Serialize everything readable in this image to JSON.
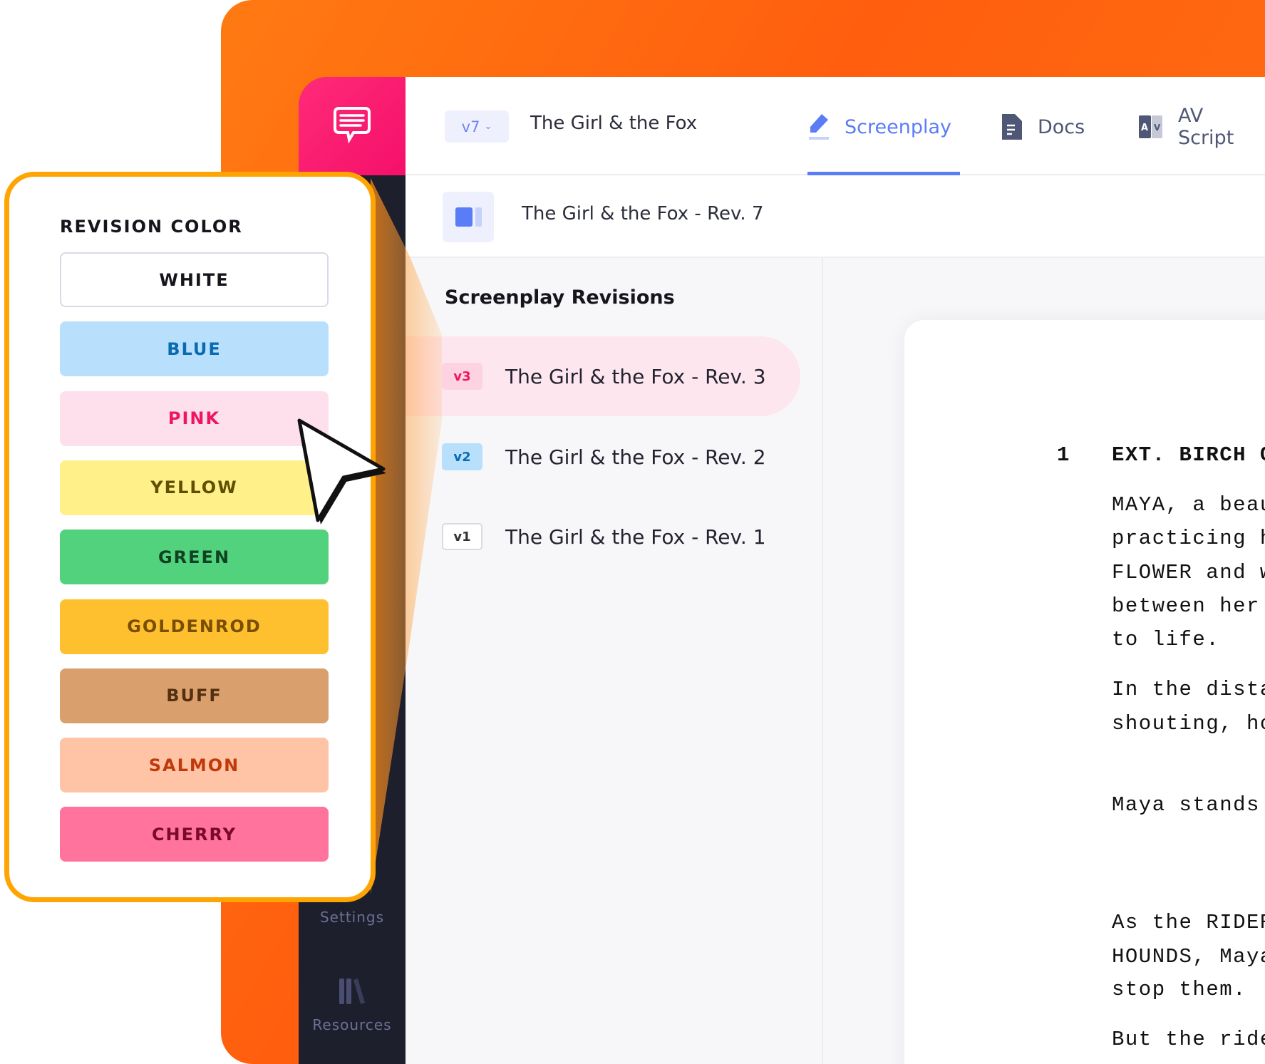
{
  "app": {
    "rail": {
      "items": [
        {
          "label": "Settings",
          "icon": "settings-icon"
        },
        {
          "label": "Resources",
          "icon": "books-icon"
        }
      ],
      "logo_icon": "chat-bubble-icon",
      "brand_color": "#f5106a"
    },
    "header": {
      "version": "v7",
      "project_title": "The Girl & the Fox",
      "tabs": [
        {
          "label": "Screenplay",
          "icon": "pencil-icon",
          "active": true
        },
        {
          "label": "Docs",
          "icon": "document-icon",
          "active": false
        },
        {
          "label": "AV Script",
          "icon": "av-icon",
          "active": false
        }
      ],
      "accent": "#5b7cf7"
    },
    "subheader": {
      "title": "The Girl & the Fox - Rev. 7",
      "icon": "panel-icon"
    },
    "revisions": {
      "heading": "Screenplay Revisions",
      "items": [
        {
          "badge": "v3",
          "title": "The Girl & the Fox - Rev. 3",
          "selected": true
        },
        {
          "badge": "v2",
          "title": "The Girl & the Fox - Rev. 2",
          "selected": false
        },
        {
          "badge": "v1",
          "title": "The Girl & the Fox - Rev. 1",
          "selected": false
        }
      ]
    },
    "script": {
      "scene_number": "1",
      "lines": [
        "EXT. BIRCH G",
        "MAYA, a beau",
        "practicing h",
        "FLOWER and w",
        "between her ",
        "to life.",
        "In the dista",
        "shouting, ho",
        "Maya stands ",
        "As the RIDER",
        "HOUNDS, Maya",
        "stop them.",
        "But the ride"
      ]
    }
  },
  "revision_color": {
    "title": "REVISION COLOR",
    "options": [
      {
        "label": "WHITE",
        "bg": "#ffffff",
        "fg": "#15151c"
      },
      {
        "label": "BLUE",
        "bg": "#b8e0fd",
        "fg": "#0b6bb0"
      },
      {
        "label": "PINK",
        "bg": "#fde0ec",
        "fg": "#f0155e"
      },
      {
        "label": "YELLOW",
        "bg": "#fff08a",
        "fg": "#5f5000"
      },
      {
        "label": "GREEN",
        "bg": "#52d27c",
        "fg": "#0f4222"
      },
      {
        "label": "GOLDENROD",
        "bg": "#fec02f",
        "fg": "#7a4e00"
      },
      {
        "label": "BUFF",
        "bg": "#d9a06e",
        "fg": "#553010"
      },
      {
        "label": "SALMON",
        "bg": "#ffc4a6",
        "fg": "#c0390b"
      },
      {
        "label": "CHERRY",
        "bg": "#ff739c",
        "fg": "#7a0a2a"
      }
    ]
  }
}
